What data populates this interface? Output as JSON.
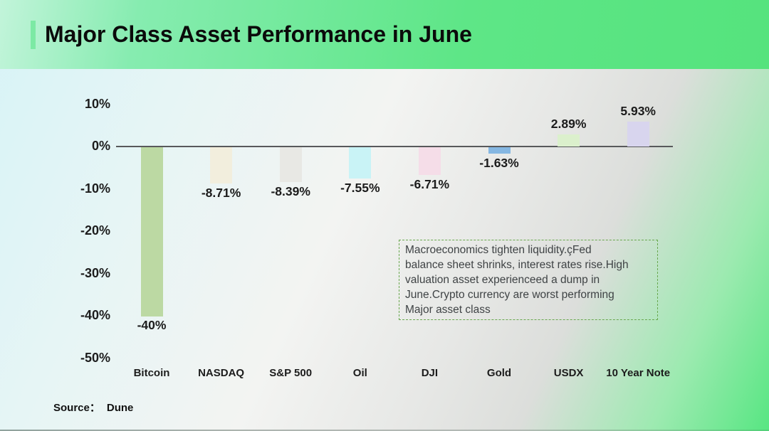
{
  "header": {
    "title": "Major Class Asset Performance in June"
  },
  "source": {
    "label": "Source：",
    "value": "Dune"
  },
  "annotation": {
    "text": "Macroeconomics tighten liquidity.çFed balance sheet shrinks, interest rates rise.High valuation asset experienceed a dump in June.Crypto currency are worst performing Major asset class",
    "lines": [
      "Macroeconomics tighten liquidity.çFed",
      "balance sheet shrinks, interest rates rise.High",
      "valuation asset experienceed a dump in",
      "June.Crypto currency are worst performing",
      "Major asset class"
    ]
  },
  "chart_data": {
    "type": "bar",
    "title": "Major Class Asset Performance in June",
    "categories": [
      "Bitcoin",
      "NASDAQ",
      "S&P 500",
      "Oil",
      "DJI",
      "Gold",
      "USDX",
      "10 Year Note"
    ],
    "values": [
      -40,
      -8.71,
      -8.39,
      -7.55,
      -6.71,
      -1.63,
      2.89,
      5.93
    ],
    "value_labels": [
      "-40%",
      "-8.71%",
      "-8.39%",
      "-7.55%",
      "-6.71%",
      "-1.63%",
      "2.89%",
      "5.93%"
    ],
    "bar_colors": [
      "#bcd9a3",
      "#f2eedd",
      "#e8e8e4",
      "#c9f3f6",
      "#f5dde8",
      "#85b7e2",
      "#dbf0cc",
      "#d8d5ee"
    ],
    "y_ticks": {
      "labels": [
        "10%",
        "0%",
        "-10%",
        "-20%",
        "-30%",
        "-40%",
        "-50%"
      ],
      "values": [
        10,
        0,
        -10,
        -20,
        -30,
        -40,
        -50
      ]
    },
    "ylim": [
      -50,
      10
    ],
    "xlabel": "",
    "ylabel": "",
    "grid": false,
    "legend": false,
    "axis_line_color": "#58595b",
    "label_color": "#1c1c1c"
  },
  "colors": {
    "banner_gradient_start": "#c2f4da",
    "banner_gradient_end": "#55e37d",
    "accent_bar": "#7ce9a4",
    "annotation_border": "#6aa84f",
    "annotation_text": "#3f4345",
    "background_topleft": "#d7f3f7",
    "background_bottomright": "#57e682"
  }
}
